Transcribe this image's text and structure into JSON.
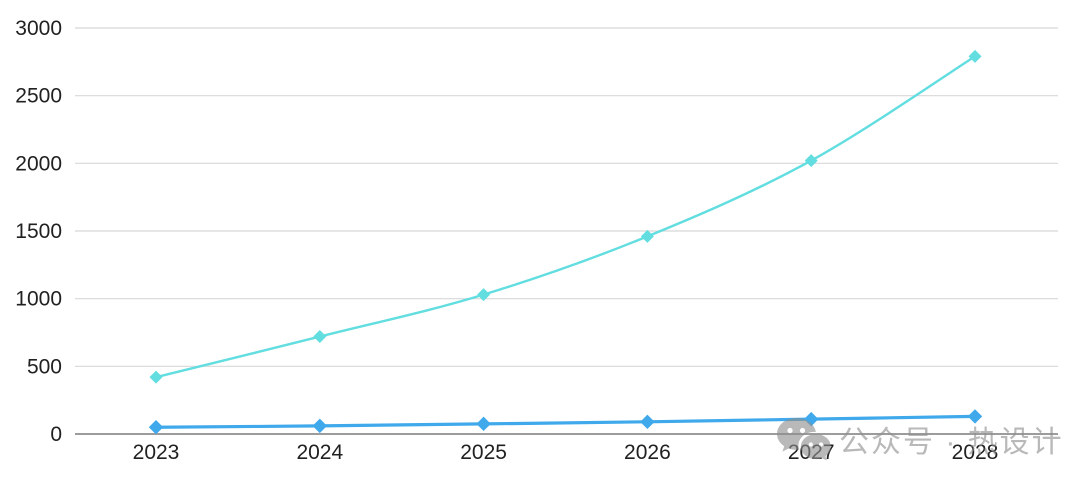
{
  "chart_data": {
    "type": "line",
    "title": "",
    "categories": [
      "2023",
      "2024",
      "2025",
      "2026",
      "2027",
      "2028"
    ],
    "series": [
      {
        "name": "upper-turquoise-series",
        "color": "#62DDE0",
        "values": [
          420,
          720,
          1030,
          1460,
          2020,
          2790
        ]
      },
      {
        "name": "lower-blue-series",
        "color": "#3FA9EB",
        "values": [
          50,
          60,
          75,
          90,
          110,
          130
        ]
      }
    ],
    "xlabel": "",
    "ylabel": "",
    "ylim": [
      0,
      3000
    ],
    "yticks": [
      0,
      500,
      1000,
      1500,
      2000,
      2500,
      3000
    ],
    "grid": true,
    "legend": "none",
    "marker": "diamond"
  },
  "colors": {
    "background": "#ffffff",
    "gridline": "#d8d8d8",
    "axis_line": "#9c9c9c",
    "tick_text": "#212121",
    "watermark_gray": "#8f8f8f"
  },
  "watermark": {
    "text": "公众号 · 热设计",
    "icon": "wechat-icon"
  }
}
